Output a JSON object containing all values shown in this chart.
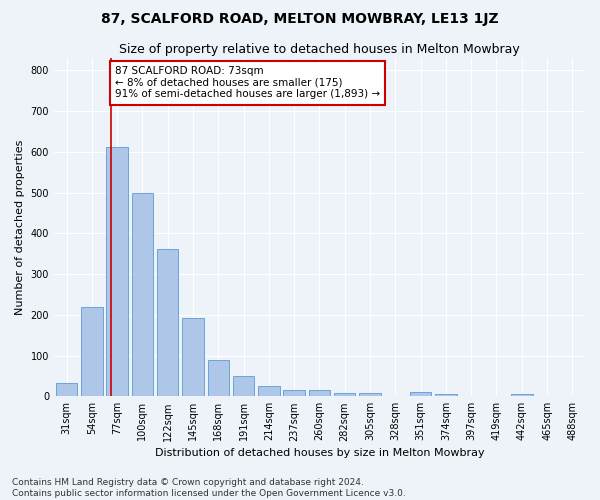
{
  "title": "87, SCALFORD ROAD, MELTON MOWBRAY, LE13 1JZ",
  "subtitle": "Size of property relative to detached houses in Melton Mowbray",
  "xlabel": "Distribution of detached houses by size in Melton Mowbray",
  "ylabel": "Number of detached properties",
  "footnote1": "Contains HM Land Registry data © Crown copyright and database right 2024.",
  "footnote2": "Contains public sector information licensed under the Open Government Licence v3.0.",
  "bar_labels": [
    "31sqm",
    "54sqm",
    "77sqm",
    "100sqm",
    "122sqm",
    "145sqm",
    "168sqm",
    "191sqm",
    "214sqm",
    "237sqm",
    "260sqm",
    "282sqm",
    "305sqm",
    "328sqm",
    "351sqm",
    "374sqm",
    "397sqm",
    "419sqm",
    "442sqm",
    "465sqm",
    "488sqm"
  ],
  "bar_values": [
    32,
    220,
    612,
    500,
    362,
    193,
    90,
    50,
    25,
    16,
    15,
    8,
    8,
    0,
    10,
    5,
    0,
    0,
    5,
    0,
    0
  ],
  "bar_color": "#aec6e8",
  "bar_edge_color": "#5b9bd5",
  "annotation_text1": "87 SCALFORD ROAD: 73sqm",
  "annotation_text2": "← 8% of detached houses are smaller (175)",
  "annotation_text3": "91% of semi-detached houses are larger (1,893) →",
  "vline_color": "#cc0000",
  "vline_x": 1.77,
  "annotation_box_edge": "#cc0000",
  "ylim": [
    0,
    830
  ],
  "yticks": [
    0,
    100,
    200,
    300,
    400,
    500,
    600,
    700,
    800
  ],
  "background_color": "#eef2f9",
  "plot_bg_color": "#eef2f9",
  "grid_color": "#ffffff",
  "title_fontsize": 10,
  "subtitle_fontsize": 9,
  "axis_label_fontsize": 8,
  "tick_fontsize": 7,
  "annotation_fontsize": 7.5,
  "footnote_fontsize": 6.5
}
